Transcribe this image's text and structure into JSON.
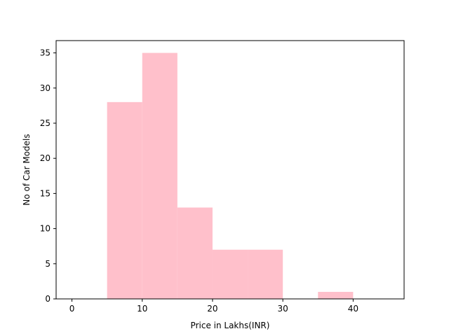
{
  "chart_data": {
    "type": "bar",
    "subtype": "histogram",
    "xlabel": "Price in Lakhs(INR)",
    "ylabel": "No of Car Models",
    "xlim": [
      -2.25,
      47.25
    ],
    "ylim": [
      0,
      36.75
    ],
    "xticks": [
      0,
      10,
      20,
      30,
      40
    ],
    "yticks": [
      0,
      5,
      10,
      15,
      20,
      25,
      30,
      35
    ],
    "bins": [
      {
        "start": 0,
        "end": 5,
        "count": 0
      },
      {
        "start": 5,
        "end": 10,
        "count": 28
      },
      {
        "start": 10,
        "end": 15,
        "count": 35
      },
      {
        "start": 15,
        "end": 20,
        "count": 13
      },
      {
        "start": 20,
        "end": 25,
        "count": 7
      },
      {
        "start": 25,
        "end": 30,
        "count": 7
      },
      {
        "start": 30,
        "end": 35,
        "count": 0
      },
      {
        "start": 35,
        "end": 40,
        "count": 1
      },
      {
        "start": 40,
        "end": 45,
        "count": 0
      }
    ],
    "bar_color": "#FFC0CB",
    "grid": false,
    "legend": "none"
  }
}
